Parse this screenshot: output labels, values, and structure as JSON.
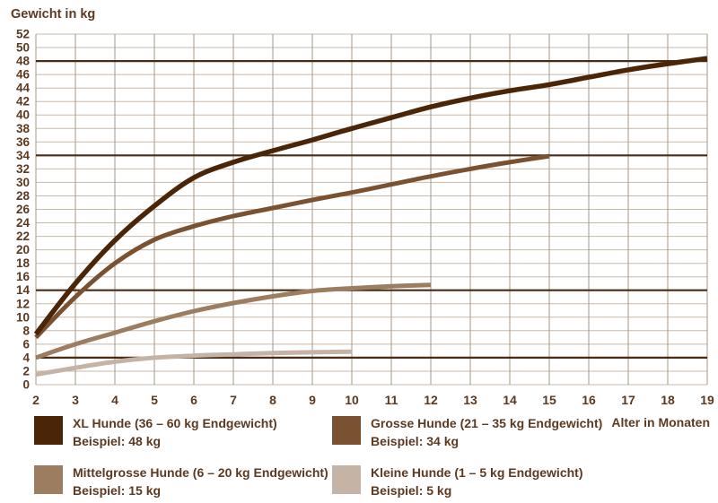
{
  "title": "Gewicht in kg",
  "x_axis_label": "Alter in Monaten",
  "colors": {
    "text": "#5b3a21",
    "reference_line": "#4a2a12",
    "grid_horizontal": "#c8b8a8",
    "grid_vertical": "#a79685",
    "background": "#ffffff"
  },
  "chart_data": {
    "type": "line",
    "title": "Gewicht in kg",
    "xlabel": "Alter in Monaten",
    "ylabel": "Gewicht in kg",
    "xlim": [
      2,
      19
    ],
    "ylim": [
      0,
      52
    ],
    "x_ticks": [
      2,
      3,
      4,
      5,
      6,
      7,
      8,
      9,
      10,
      11,
      12,
      13,
      14,
      15,
      16,
      17,
      18,
      19
    ],
    "y_tick_step": 2,
    "grid": true,
    "legend_position": "bottom",
    "reference_lines": [
      48,
      34,
      14,
      4
    ],
    "series": [
      {
        "name": "XL Hunde (36 – 60 kg Endgewicht)",
        "example": "Beispiel: 48 kg",
        "color": "#4b2507",
        "points": [
          [
            2,
            7.5
          ],
          [
            3,
            15
          ],
          [
            4,
            21.4
          ],
          [
            5,
            26.5
          ],
          [
            6,
            30.7
          ],
          [
            7,
            33
          ],
          [
            8,
            34.7
          ],
          [
            9,
            36.3
          ],
          [
            10,
            38
          ],
          [
            11,
            39.6
          ],
          [
            12,
            41.2
          ],
          [
            13,
            42.5
          ],
          [
            14,
            43.6
          ],
          [
            15,
            44.5
          ],
          [
            16,
            45.6
          ],
          [
            17,
            46.7
          ],
          [
            18,
            47.6
          ],
          [
            19,
            48.4
          ]
        ]
      },
      {
        "name": "Grosse Hunde (21 – 35 kg Endgewicht)",
        "example": "Beispiel: 34 kg",
        "color": "#7a5231",
        "points": [
          [
            2,
            7
          ],
          [
            3,
            13
          ],
          [
            4,
            18
          ],
          [
            5,
            21.5
          ],
          [
            6,
            23.5
          ],
          [
            7,
            25
          ],
          [
            8,
            26.2
          ],
          [
            9,
            27.4
          ],
          [
            10,
            28.5
          ],
          [
            11,
            29.7
          ],
          [
            12,
            30.9
          ],
          [
            13,
            32
          ],
          [
            14,
            33
          ],
          [
            15,
            33.9
          ]
        ]
      },
      {
        "name": "Mittelgrosse Hunde (6 – 20 kg Endgewicht)",
        "example": "Beispiel: 15 kg",
        "color": "#9c7d60",
        "points": [
          [
            2,
            4
          ],
          [
            3,
            6
          ],
          [
            4,
            7.7
          ],
          [
            5,
            9.4
          ],
          [
            6,
            10.9
          ],
          [
            7,
            12.1
          ],
          [
            8,
            13.1
          ],
          [
            9,
            13.9
          ],
          [
            10,
            14.3
          ],
          [
            11,
            14.6
          ],
          [
            12,
            14.8
          ]
        ]
      },
      {
        "name": "Kleine Hunde (1 – 5 kg Endgewicht)",
        "example": "Beispiel: 5 kg",
        "color": "#c5b4a5",
        "points": [
          [
            2,
            1.5
          ],
          [
            3,
            2.5
          ],
          [
            4,
            3.4
          ],
          [
            5,
            4
          ],
          [
            6,
            4.3
          ],
          [
            7,
            4.5
          ],
          [
            8,
            4.7
          ],
          [
            9,
            4.8
          ],
          [
            10,
            4.9
          ]
        ]
      }
    ]
  }
}
